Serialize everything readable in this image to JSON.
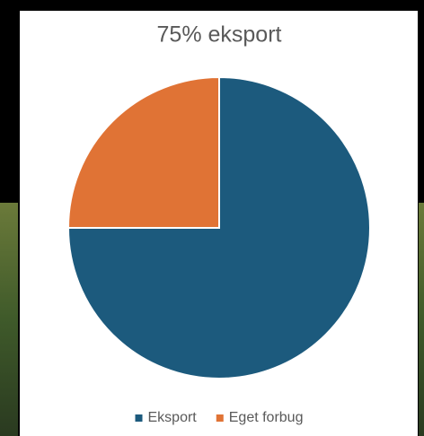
{
  "chart_data": {
    "type": "pie",
    "title": "75% eksport",
    "categories": [
      "Eksport",
      "Eget forbug"
    ],
    "values": [
      75,
      25
    ],
    "colors": [
      "#1c5a7d",
      "#e07335"
    ],
    "legend": "bottom"
  }
}
